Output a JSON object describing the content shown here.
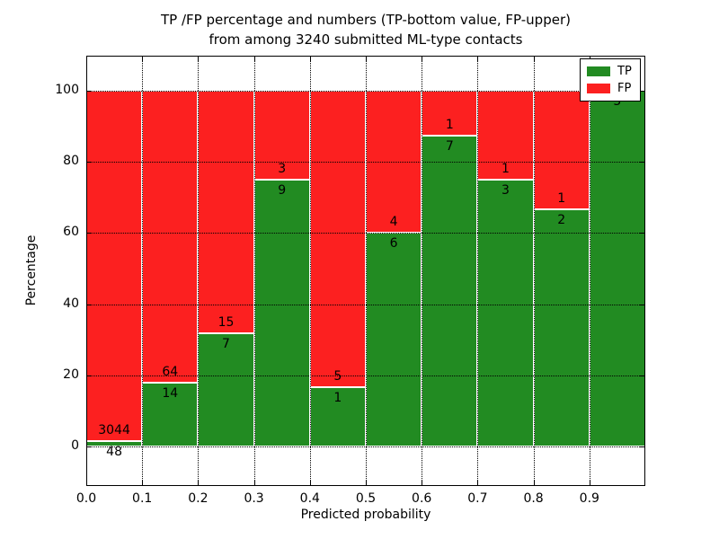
{
  "figure": {
    "title_line1": "TP /FP percentage and numbers (TP-bottom value, FP-upper)",
    "title_line2": "from among 3240 submitted ML-type contacts"
  },
  "chart_data": {
    "type": "bar",
    "stacked": true,
    "normalized": "each bin scaled to 100%, labels show raw counts",
    "title": "TP /FP percentage and numbers (TP-bottom value, FP-upper)\nfrom among 3240 submitted ML-type contacts",
    "xlabel": "Predicted probability",
    "ylabel": "Percentage",
    "total_contacts": 3240,
    "bin_width": 0.1,
    "categories": [
      "0.0",
      "0.1",
      "0.2",
      "0.3",
      "0.4",
      "0.5",
      "0.6",
      "0.7",
      "0.8",
      "0.9"
    ],
    "series": [
      {
        "name": "TP",
        "color": "#228B22",
        "counts": [
          48,
          14,
          7,
          9,
          1,
          6,
          7,
          3,
          2,
          5
        ]
      },
      {
        "name": "FP",
        "color": "#FC2020",
        "counts": [
          3044,
          64,
          15,
          3,
          5,
          4,
          1,
          1,
          1,
          0
        ]
      }
    ],
    "tp_percent_of_bin": [
      1.55,
      17.95,
      31.82,
      75.0,
      16.67,
      60.0,
      87.5,
      75.0,
      66.67,
      100.0
    ],
    "yticks": [
      0,
      20,
      40,
      60,
      80,
      100
    ],
    "xticks": [
      "0.0",
      "0.1",
      "0.2",
      "0.3",
      "0.4",
      "0.5",
      "0.6",
      "0.7",
      "0.8",
      "0.9"
    ],
    "ylim": [
      -11,
      110
    ],
    "xlim": [
      0.0,
      1.0
    ],
    "grid": true,
    "grid_style": "dotted",
    "legend_position": "upper right"
  }
}
